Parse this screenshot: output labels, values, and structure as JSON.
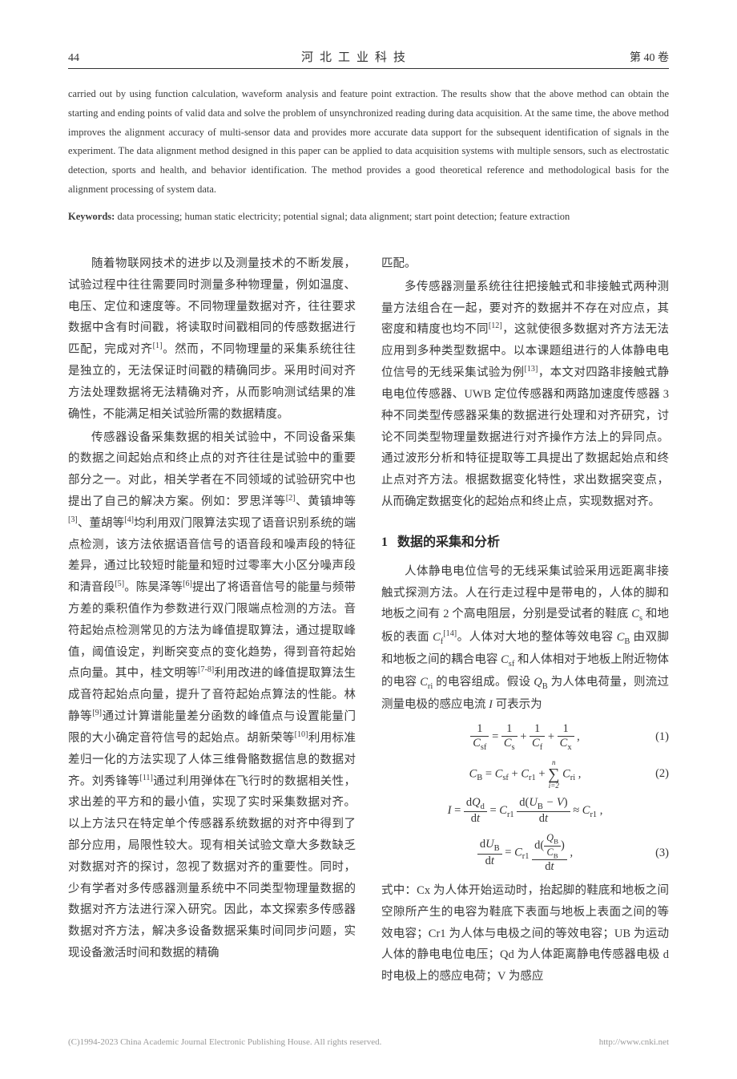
{
  "header": {
    "page_number": "44",
    "journal_title": "河北工业科技",
    "volume": "第 40 卷"
  },
  "abstract_en": "carried out by using function calculation, waveform analysis and feature point extraction. The results show that the above method can obtain the starting and ending points of valid data and solve the problem of unsynchronized reading during data acquisition. At the same time, the above method improves the alignment accuracy of multi-sensor data and provides more accurate data support for the subsequent identification of signals in the experiment. The data alignment method designed in this paper can be applied to data acquisition systems with multiple sensors, such as electrostatic detection, sports and health, and behavior identification. The method provides a good theoretical reference and methodological basis for the alignment processing of system data.",
  "keywords_en": {
    "label": "Keywords:",
    "text": "data processing; human static electricity; potential signal; data alignment; start point detection; feature extraction"
  },
  "left_column": {
    "p1": "随着物联网技术的进步以及测量技术的不断发展，试验过程中往往需要同时测量多种物理量，例如温度、电压、定位和速度等。不同物理量数据对齐，往往要求数据中含有时间戳，将读取时间戳相同的传感数据进行匹配，完成对齐",
    "p1_ref": "[1]",
    "p1_tail": "。然而，不同物理量的采集系统往往是独立的，无法保证时间戳的精确同步。采用时间对齐方法处理数据将无法精确对齐，从而影响测试结果的准确性，不能满足相关试验所需的数据精度。",
    "p2a": "传感器设备采集数据的相关试验中，不同设备采集的数据之间起始点和终止点的对齐往往是试验中的重要部分之一。对此，相关学者在不同领域的试验研究中也提出了自己的解决方案。例如：罗思洋等",
    "p2_r2": "[2]",
    "p2b": "、黄镇坤等",
    "p2_r3": "[3]",
    "p2c": "、董胡等",
    "p2_r4": "[4]",
    "p2d": "均利用双门限算法实现了语音识别系统的端点检测，该方法依据语音信号的语音段和噪声段的特征差异，通过比较短时能量和短时过零率大小区分噪声段和清音段",
    "p2_r5": "[5]",
    "p2e": "。陈昊泽等",
    "p2_r6": "[6]",
    "p2f": "提出了将语音信号的能量与频带方差的乘积值作为参数进行双门限端点检测的方法。音符起始点检测常见的方法为峰值提取算法，通过提取峰值，阈值设定，判断突变点的变化趋势，得到音符起始点向量。其中，桂文明等",
    "p2_r78": "[7-8]",
    "p2g": "利用改进的峰值提取算法生成音符起始点向量，提升了音符起始点算法的性能。林静等",
    "p2_r9": "[9]",
    "p2h": "通过计算谱能量差分函数的峰值点与设置能量门限的大小确定音符信号的起始点。胡新荣等",
    "p2_r10": "[10]",
    "p2i": "利用标准差归一化的方法实现了人体三维骨骼数据信息的数据对齐。刘秀锋等",
    "p2_r11": "[11]",
    "p2j": "通过利用弹体在飞行时的数据相关性，求出差的平方和的最小值，实现了实时采集数据对齐。以上方法只在特定单个传感器系统数据的对齐中得到了部分应用，局限性较大。现有相关试验文章大多数缺乏对数据对齐的探讨，忽视了数据对齐的重要性。同时，少有学者对多传感器测量系统中不同类型物理量数据的数据对齐方法进行深入研究。因此，本文探索多传感器数据对齐方法，解决多设备数据采集时间同步问题，实现设备激活时间和数据的精确"
  },
  "right_column": {
    "p1_head": "匹配。",
    "p2a": "多传感器测量系统往往把接触式和非接触式两种测量方法组合在一起，要对齐的数据并不存在对应点，其密度和精度也均不同",
    "p2_r12": "[12]",
    "p2b": "，这就使很多数据对齐方法无法应用到多种类型数据中。以本课题组进行的人体静电电位信号的无线采集试验为例",
    "p2_r13": "[13]",
    "p2c": "，本文对四路非接触式静电电位传感器、UWB 定位传感器和两路加速度传感器 3 种不同类型传感器采集的数据进行处理和对齐研究，讨论不同类型物理量数据进行对齐操作方法上的异同点。通过波形分析和特征提取等工具提出了数据起始点和终止点对齐方法。根据数据变化特性，求出数据突变点，从而确定数据变化的起始点和终止点，实现数据对齐。",
    "section1_num": "1",
    "section1_title": "数据的采集和分析",
    "p3a": "人体静电电位信号的无线采集试验采用远距离非接触式探测方法。人在行走过程中是带电的，人体的脚和地板之间有 2 个高电阻层，分别是受试者的鞋底 ",
    "p3_Cs": "C",
    "p3_Cs_sub": "s",
    "p3b": " 和地板的表面 ",
    "p3_Cf": "C",
    "p3_Cf_sub": "f",
    "p3_r14": "[14]",
    "p3c": "。人体对大地的整体等效电容 ",
    "p3_CB": "C",
    "p3_CB_sub": "B",
    "p3d": " 由双脚和地板之间的耦合电容 ",
    "p3_Csf": "C",
    "p3_Csf_sub": "sf",
    "p3e": " 和人体相对于地板上附近物体的电容 ",
    "p3_Cri": "C",
    "p3_Cri_sub": "ri",
    "p3f": " 的电容组成。假设 ",
    "p3_QB": "Q",
    "p3_QB_sub": "B",
    "p3g": " 为人体电荷量，则流过测量电极的感应电流 ",
    "p3_I": "I",
    "p3h": " 可表示为",
    "eq1_num": "(1)",
    "eq2_num": "(2)",
    "eq3_num": "(3)",
    "p4": "式中：Cx 为人体开始运动时，抬起脚的鞋底和地板之间空隙所产生的电容为鞋底下表面与地板上表面之间的等效电容；Cr1 为人体与电极之间的等效电容；UB 为运动人体的静电电位电压；Qd 为人体距离静电传感器电极 d 时电极上的感应电荷；V 为感应"
  },
  "footer": {
    "left": "(C)1994-2023 China Academic Journal Electronic Publishing House. All rights reserved.",
    "right": "http://www.cnki.net"
  }
}
